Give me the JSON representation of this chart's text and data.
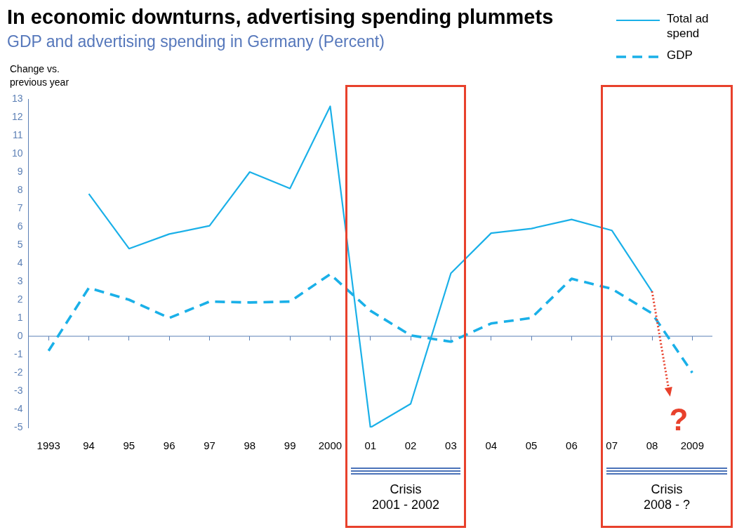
{
  "chart_data": {
    "type": "line",
    "title": "In economic downturns, advertising spending plummets",
    "subtitle": "GDP and advertising spending in Germany (Percent)",
    "ylabel": "Change vs. previous year",
    "categories": [
      "1993",
      "94",
      "95",
      "96",
      "97",
      "98",
      "99",
      "2000",
      "01",
      "02",
      "03",
      "04",
      "05",
      "06",
      "07",
      "08",
      "2009"
    ],
    "series": [
      {
        "name": "Total ad spend",
        "color": "#1ab0e8",
        "line_style": "solid",
        "values": [
          null,
          7.8,
          4.8,
          5.6,
          6.05,
          9.0,
          8.1,
          12.6,
          -5.0,
          -3.7,
          3.45,
          5.65,
          5.9,
          6.4,
          5.8,
          2.45,
          null
        ]
      },
      {
        "name": "GDP",
        "color": "#1ab0e8",
        "line_style": "dashed",
        "values": [
          -0.8,
          2.65,
          2.0,
          1.0,
          1.9,
          1.85,
          1.9,
          3.4,
          1.4,
          0.05,
          -0.3,
          0.7,
          1.0,
          3.15,
          2.6,
          1.25,
          -2.0
        ]
      }
    ],
    "ylim": [
      -5,
      13
    ],
    "yticks": [
      -5,
      -4,
      -3,
      -2,
      -1,
      0,
      1,
      2,
      3,
      4,
      5,
      6,
      7,
      8,
      9,
      10,
      11,
      12,
      13
    ],
    "marker": "none",
    "legend": "top right",
    "ref_lines": [
      {
        "axis": "y",
        "value": 0,
        "color": "#5b7fb5"
      }
    ],
    "annotations": [
      "Crisis\n2001 - 2002",
      "Crisis\n2008 - ?",
      {
        "text": "?",
        "x": "08",
        "y": 2.45
      }
    ]
  }
}
